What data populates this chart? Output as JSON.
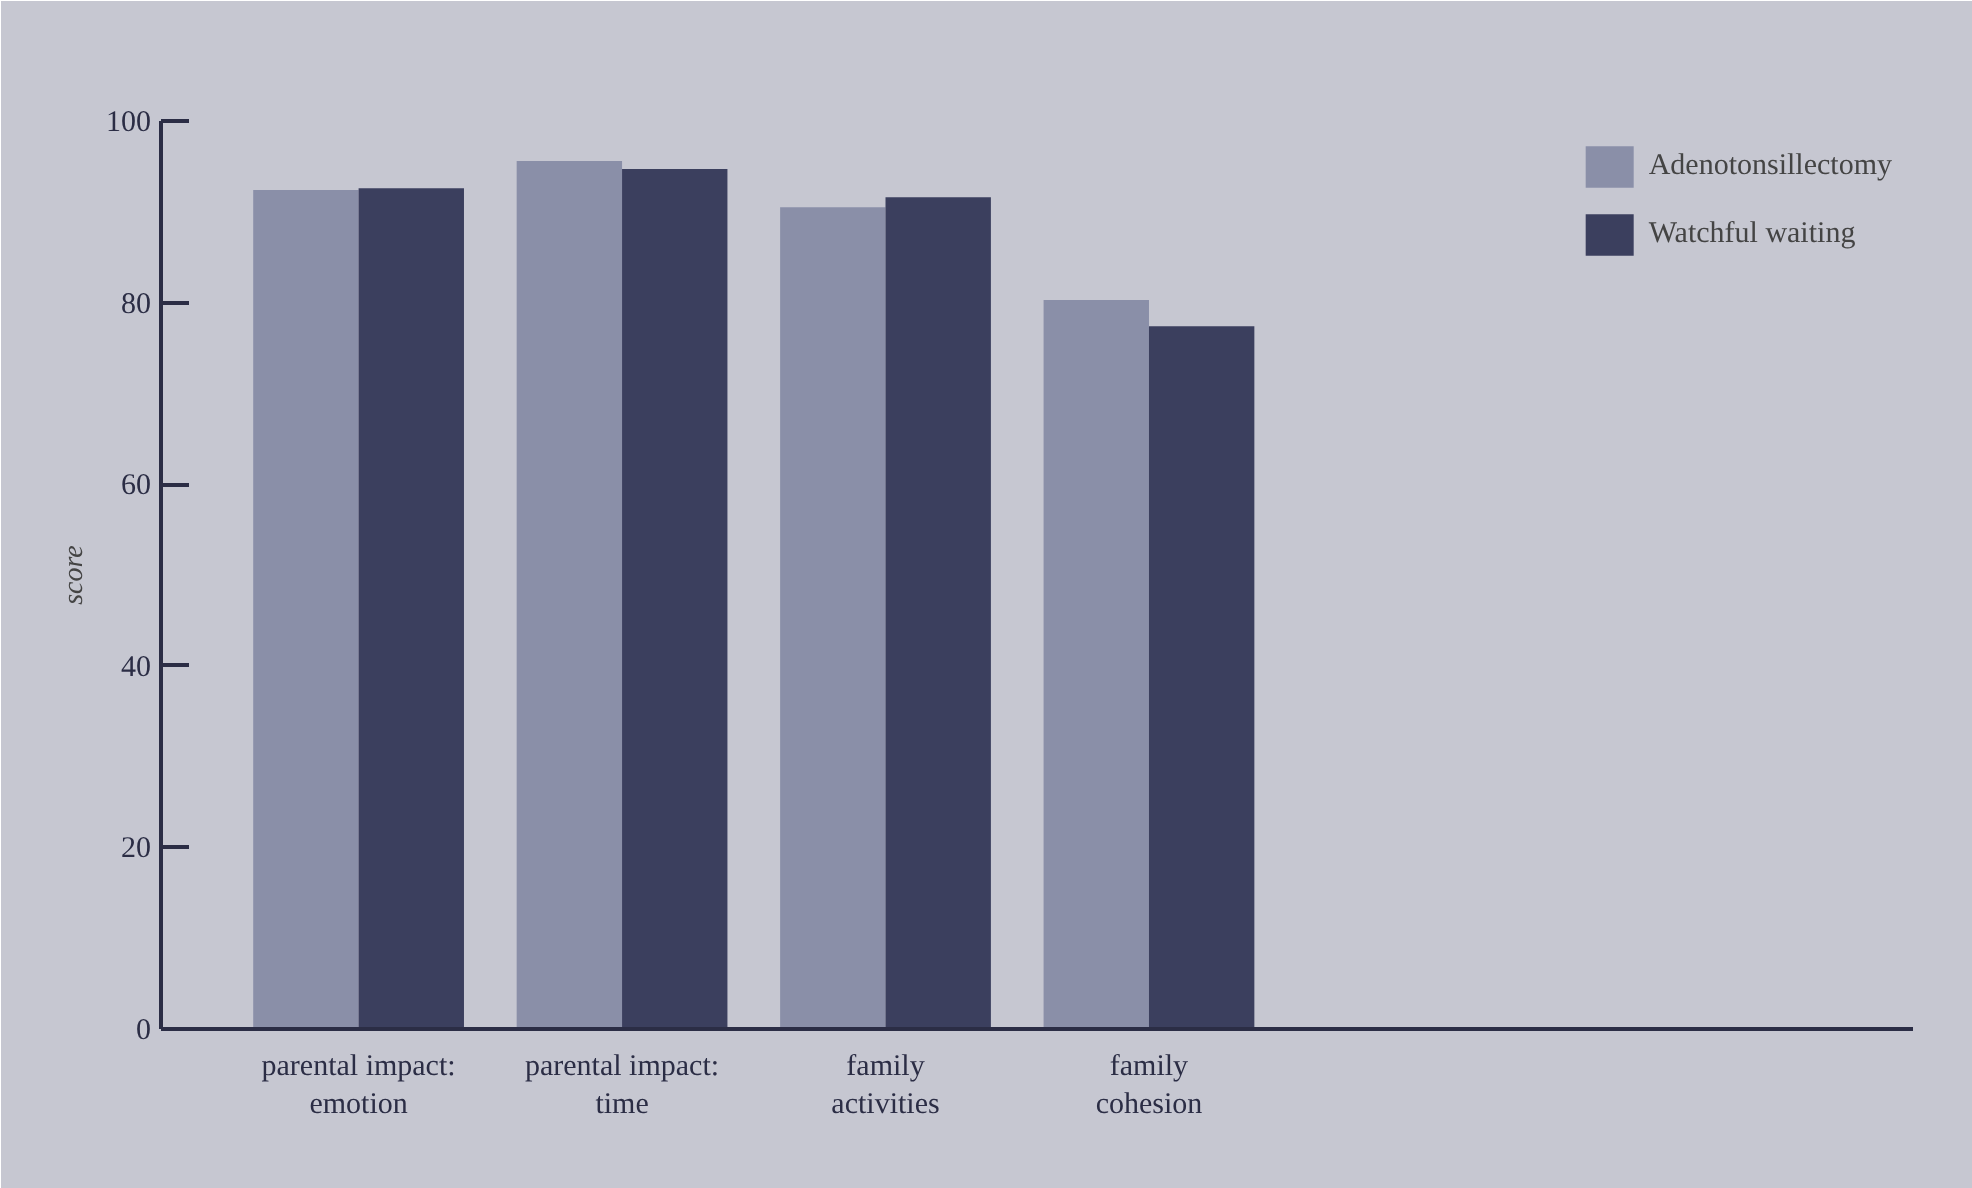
{
  "chart_data": {
    "type": "bar",
    "ylabel": "score",
    "categories": [
      "parental impact:\nemotion",
      "parental impact:\ntime",
      "family\nactivities",
      "family\ncohesion"
    ],
    "series": [
      {
        "name": "Adenotonsillectomy",
        "color": "#8a8fa8",
        "values": [
          92.4,
          95.6,
          90.5,
          80.3
        ]
      },
      {
        "name": "Watchful waiting",
        "color": "#3b3f5e",
        "values": [
          92.6,
          94.7,
          91.6,
          77.4
        ]
      }
    ],
    "ylim": [
      0,
      100
    ],
    "yticks": [
      0,
      20,
      40,
      60,
      80,
      100
    ],
    "grid": false,
    "legend": "top right"
  }
}
